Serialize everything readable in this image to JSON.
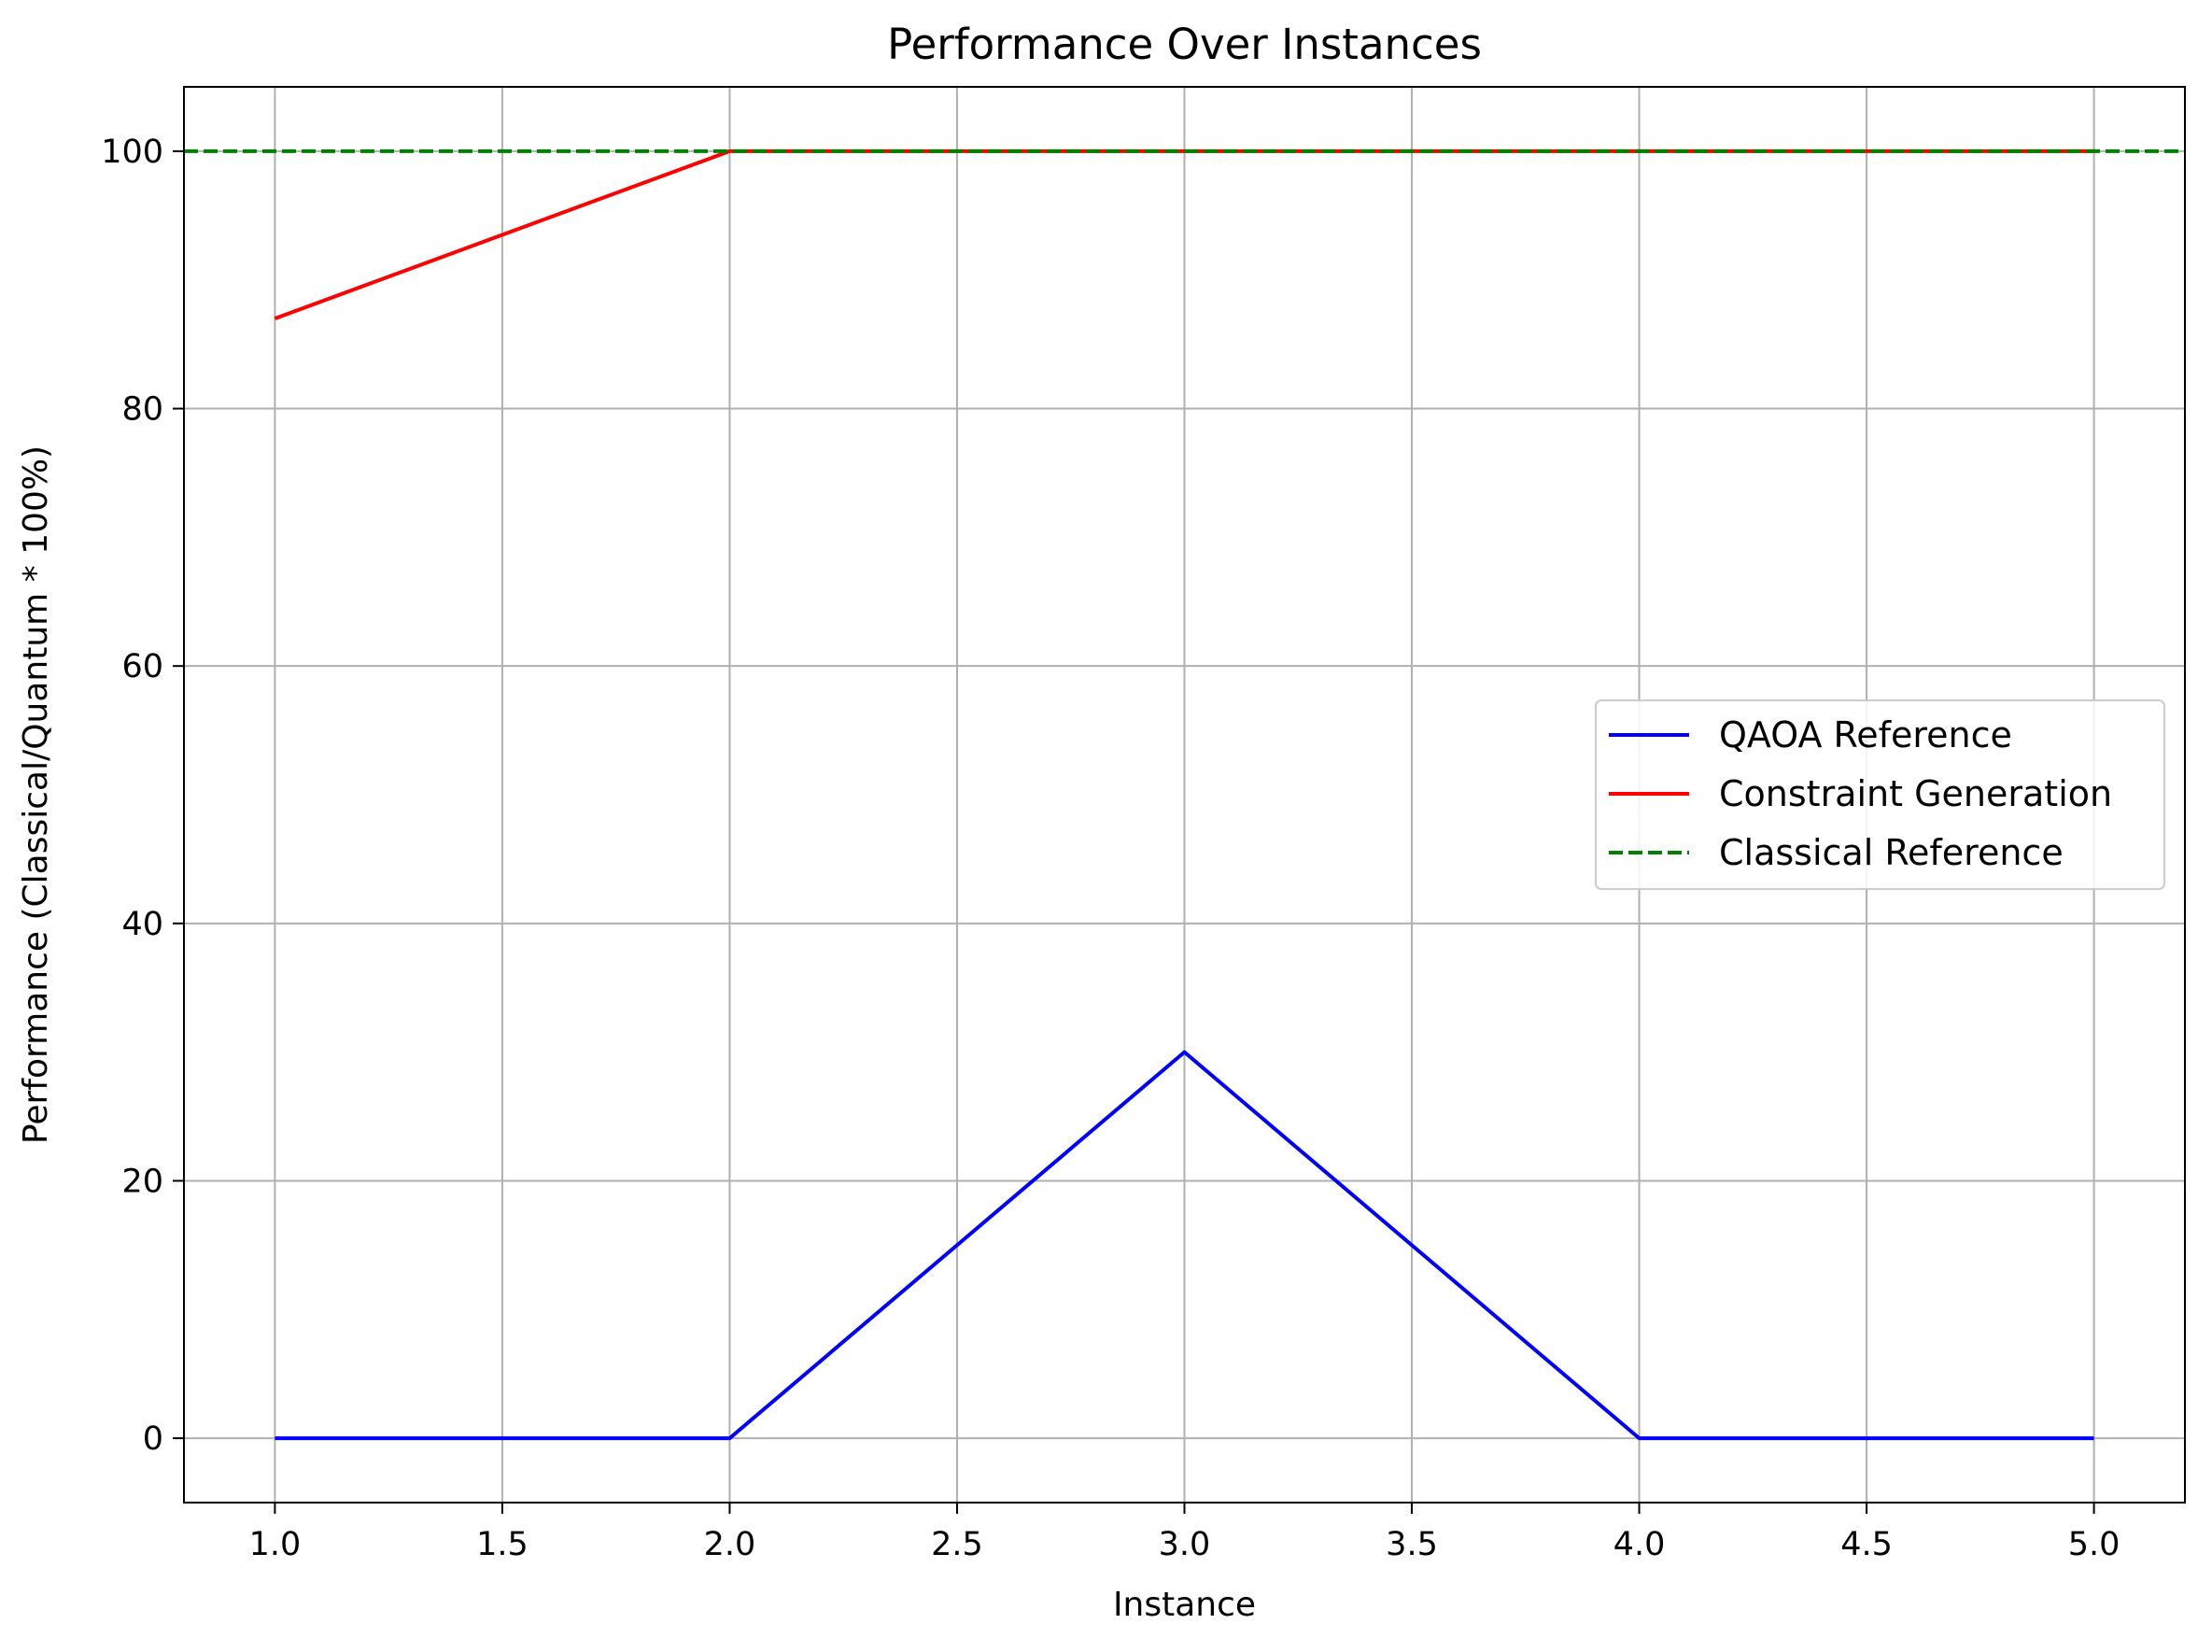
{
  "chart_data": {
    "type": "line",
    "title": "Performance Over Instances",
    "xlabel": "Instance",
    "ylabel": "Performance (Classical/Quantum * 100%)",
    "xlim": [
      0.8,
      5.2
    ],
    "ylim": [
      -5,
      105
    ],
    "xticks": [
      1.0,
      1.5,
      2.0,
      2.5,
      3.0,
      3.5,
      4.0,
      4.5,
      5.0
    ],
    "xtick_labels": [
      "1.0",
      "1.5",
      "2.0",
      "2.5",
      "3.0",
      "3.5",
      "4.0",
      "4.5",
      "5.0"
    ],
    "yticks": [
      0,
      20,
      40,
      60,
      80,
      100
    ],
    "ytick_labels": [
      "0",
      "20",
      "40",
      "60",
      "80",
      "100"
    ],
    "grid": true,
    "legend_position": "center-right",
    "series": [
      {
        "name": "QAOA Reference",
        "color": "#0000ff",
        "style": "solid",
        "x": [
          1,
          2,
          3,
          4,
          5
        ],
        "y": [
          0,
          0,
          30,
          0,
          0
        ]
      },
      {
        "name": "Constraint Generation",
        "color": "#ff0000",
        "style": "solid",
        "x": [
          1,
          2,
          3,
          4,
          5
        ],
        "y": [
          87,
          100,
          100,
          100,
          100
        ]
      }
    ],
    "reference_lines": [
      {
        "name": "Classical Reference",
        "color": "#008000",
        "style": "dashed",
        "y": 100
      }
    ]
  }
}
